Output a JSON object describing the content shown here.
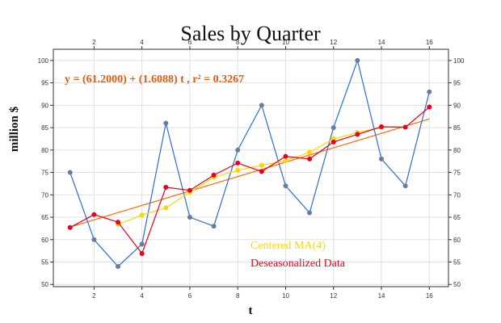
{
  "chart_data": {
    "type": "line",
    "title": "Sales by Quarter",
    "xlabel": "t",
    "ylabel": "million $",
    "xlim": [
      0.3,
      16.8
    ],
    "ylim": [
      49.5,
      102.5
    ],
    "x_ticks": [
      2,
      4,
      6,
      8,
      10,
      12,
      14,
      16
    ],
    "y_ticks": [
      50,
      55,
      60,
      65,
      70,
      75,
      80,
      85,
      90,
      95,
      100
    ],
    "grid": true,
    "equation": "y = (61.2000) + (1.6088) t , r² = 0.3267",
    "trend": {
      "intercept": 61.2,
      "slope": 1.6088,
      "x_range": [
        1,
        16
      ],
      "color": "#ff6a00"
    },
    "legend_position": "bottom-center",
    "series": [
      {
        "key": "sales",
        "color": "#2c6fd6",
        "marker_color": "#6c7aa0",
        "x": [
          1,
          2,
          3,
          4,
          5,
          6,
          7,
          8,
          9,
          10,
          11,
          12,
          13,
          14,
          15,
          16
        ],
        "y": [
          75,
          60,
          54,
          59,
          86,
          65,
          63,
          80,
          90,
          72,
          66,
          85,
          100,
          78,
          72,
          93
        ]
      },
      {
        "key": "ma",
        "name": "Centered MA(4)",
        "color": "#ffd700",
        "x": [
          3,
          4,
          5,
          6,
          7,
          8,
          9,
          10,
          11,
          12,
          13,
          14
        ],
        "y": [
          63.4,
          65.5,
          67.1,
          70.6,
          73.9,
          75.5,
          76.6,
          77.6,
          79.5,
          82.5,
          83.9,
          85.1
        ]
      },
      {
        "key": "deseason",
        "name": "Deseasonalized Data",
        "color": "#e8001c",
        "x": [
          1,
          2,
          3,
          4,
          5,
          6,
          7,
          8,
          9,
          10,
          11,
          12,
          13,
          14,
          15,
          16
        ],
        "y": [
          62.7,
          65.6,
          63.9,
          56.9,
          71.7,
          71.0,
          74.4,
          77.1,
          75.2,
          78.6,
          78.0,
          81.8,
          83.5,
          85.2,
          85.1,
          89.6
        ]
      }
    ]
  }
}
